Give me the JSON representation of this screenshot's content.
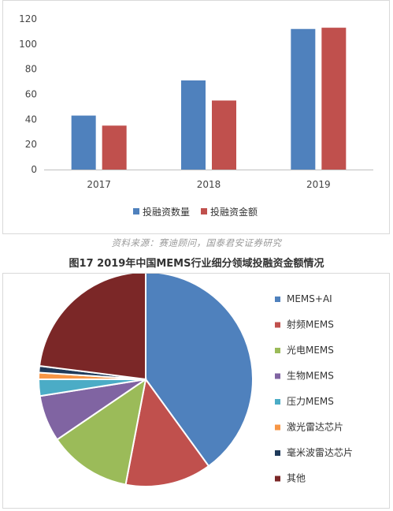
{
  "source_note": "资料来源：赛迪顾问，国泰君安证券研究",
  "figure_title": "图17   2019年中国MEMS行业细分领域投融资金额情况",
  "chart_data": [
    {
      "type": "bar",
      "categories": [
        "2017",
        "2018",
        "2019"
      ],
      "series": [
        {
          "name": "投融资数量",
          "values": [
            43,
            71,
            112
          ],
          "color": "#4f81bd"
        },
        {
          "name": "投融资金额",
          "values": [
            35,
            55,
            113
          ],
          "color": "#c0504d"
        }
      ],
      "ylim": [
        0,
        120
      ],
      "yticks": [
        "0",
        "20",
        "40",
        "60",
        "80",
        "100",
        "120"
      ],
      "legend": "bottom"
    },
    {
      "type": "pie",
      "labels": [
        "MEMS+AI",
        "射频MEMS",
        "光电MEMS",
        "生物MEMS",
        "压力MEMS",
        "激光雷达芯片",
        "毫米波雷达芯片",
        "其他"
      ],
      "values": [
        40,
        13,
        12.5,
        7,
        2.5,
        1,
        1,
        23
      ],
      "colors": [
        "#4f81bd",
        "#c0504d",
        "#9bbb59",
        "#8064a2",
        "#4bacc6",
        "#f79646",
        "#1f3a5a",
        "#7b2727"
      ],
      "legend": "right"
    }
  ]
}
